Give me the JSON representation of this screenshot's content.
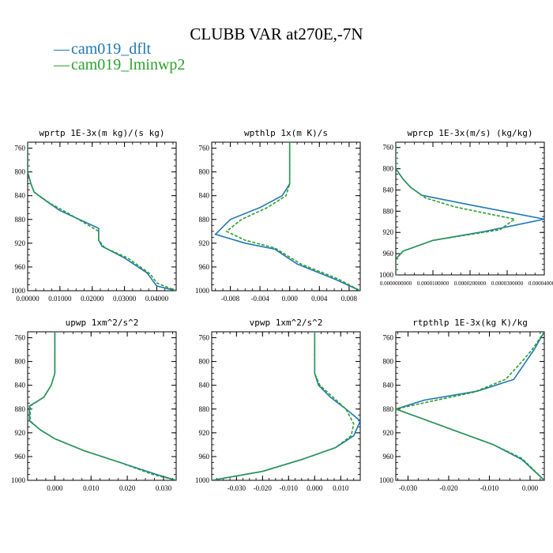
{
  "figure": {
    "title": "CLUBB VAR at270E,-7N",
    "legend": [
      {
        "label": "cam019_dflt",
        "color": "#1f77b4",
        "dash": false
      },
      {
        "label": "cam019_lminwp2",
        "color": "#2ca02c",
        "dash": true
      }
    ]
  },
  "chart_data": [
    {
      "type": "line",
      "title": "wprtp  1E-3x(m kg)/(s kg)",
      "xlim": [
        0.0,
        0.046
      ],
      "ylim": [
        1000,
        750
      ],
      "xticks": [
        0.0,
        0.01,
        0.02,
        0.03,
        0.04
      ],
      "xtick_labels": [
        "0.00000",
        "0.01000",
        "0.02000",
        "0.03000",
        "0.04000"
      ],
      "yticks": [
        760,
        800,
        840,
        880,
        920,
        960,
        1000
      ],
      "series": [
        {
          "name": "cam019_dflt",
          "color": "#1f77b4",
          "dash": false,
          "x": [
            0.0,
            0.0,
            0.001,
            0.002,
            0.006,
            0.01,
            0.022,
            0.022,
            0.023,
            0.03,
            0.037,
            0.039,
            0.04,
            0.046
          ],
          "y": [
            750,
            800,
            820,
            834,
            850,
            865,
            895,
            915,
            925,
            945,
            970,
            985,
            992,
            1000
          ]
        },
        {
          "name": "cam019_lminwp2",
          "color": "#2ca02c",
          "dash": true,
          "x": [
            0.0,
            0.0,
            0.001,
            0.002,
            0.007,
            0.012,
            0.022,
            0.022,
            0.024,
            0.031,
            0.038,
            0.04,
            0.046
          ],
          "y": [
            750,
            800,
            820,
            834,
            853,
            868,
            900,
            915,
            928,
            945,
            972,
            987,
            1000
          ]
        }
      ]
    },
    {
      "type": "line",
      "title": "wpthlp  1x(m K)/s",
      "xlim": [
        -0.0105,
        0.0095
      ],
      "ylim": [
        1000,
        750
      ],
      "xticks": [
        -0.008,
        -0.004,
        0.0,
        0.004,
        0.008
      ],
      "xtick_labels": [
        "-0.008",
        "-0.004",
        "0.000",
        "0.004",
        "0.008"
      ],
      "yticks": [
        760,
        800,
        840,
        880,
        920,
        960,
        1000
      ],
      "series": [
        {
          "name": "cam019_dflt",
          "color": "#1f77b4",
          "dash": false,
          "x": [
            0.0,
            0.0,
            -0.001,
            -0.004,
            -0.008,
            -0.01,
            -0.006,
            -0.002,
            0.001,
            0.006,
            0.0095
          ],
          "y": [
            750,
            820,
            840,
            860,
            880,
            905,
            920,
            930,
            955,
            980,
            1000
          ]
        },
        {
          "name": "cam019_lminwp2",
          "color": "#2ca02c",
          "dash": true,
          "x": [
            0.0,
            0.0,
            -0.0005,
            -0.003,
            -0.0065,
            -0.0085,
            -0.006,
            -0.002,
            0.0015,
            0.0065,
            0.0095
          ],
          "y": [
            750,
            820,
            840,
            860,
            880,
            900,
            915,
            928,
            955,
            980,
            1000
          ]
        }
      ]
    },
    {
      "type": "line",
      "title": "wprcp  1E-3x(m/s) (kg/kg)",
      "xlim": [
        0.0,
        4e-05
      ],
      "ylim": [
        1000,
        750
      ],
      "xticks": [
        0.0,
        1e-05,
        2e-05,
        3e-05,
        4e-05
      ],
      "xtick_labels": [
        "0.0000000000",
        "0.0000100000",
        "0.0000200000",
        "0.0000300000",
        "0.0000400000"
      ],
      "yticks": [
        760,
        800,
        840,
        880,
        920,
        960,
        1000
      ],
      "series": [
        {
          "name": "cam019_dflt",
          "color": "#1f77b4",
          "dash": false,
          "x": [
            0.0,
            0.0,
            2e-06,
            4e-06,
            7e-06,
            2e-05,
            4e-05,
            2.4e-05,
            1e-05,
            2e-06,
            0.0,
            0.0
          ],
          "y": [
            750,
            800,
            820,
            835,
            850,
            868,
            895,
            918,
            935,
            955,
            970,
            1000
          ]
        },
        {
          "name": "cam019_lminwp2",
          "color": "#2ca02c",
          "dash": true,
          "x": [
            0.0,
            0.0,
            2e-06,
            4e-06,
            8e-06,
            1.6e-05,
            3.2e-05,
            2.8e-05,
            1e-05,
            2e-06,
            0.0,
            0.0
          ],
          "y": [
            750,
            800,
            820,
            835,
            855,
            872,
            895,
            915,
            935,
            955,
            970,
            1000
          ]
        }
      ]
    },
    {
      "type": "line",
      "title": "upwp  1xm^2/s^2",
      "xlim": [
        -0.0075,
        0.0335
      ],
      "ylim": [
        1000,
        750
      ],
      "xticks": [
        0.0,
        0.01,
        0.02,
        0.03
      ],
      "xtick_labels": [
        "0.000",
        "0.010",
        "0.020",
        "0.030"
      ],
      "yticks": [
        760,
        800,
        840,
        880,
        920,
        960,
        1000
      ],
      "series": [
        {
          "name": "cam019_dflt",
          "color": "#1f77b4",
          "dash": false,
          "x": [
            0.0,
            0.0,
            -0.001,
            -0.003,
            -0.007,
            -0.007,
            -0.004,
            0.0,
            0.008,
            0.018,
            0.028,
            0.0335
          ],
          "y": [
            750,
            820,
            840,
            860,
            875,
            900,
            915,
            930,
            950,
            970,
            990,
            1000
          ]
        },
        {
          "name": "cam019_lminwp2",
          "color": "#2ca02c",
          "dash": true,
          "x": [
            0.0,
            0.0,
            -0.001,
            -0.003,
            -0.0068,
            -0.0068,
            -0.004,
            0.0,
            0.008,
            0.018,
            0.027,
            0.0335
          ],
          "y": [
            750,
            820,
            840,
            860,
            875,
            900,
            915,
            930,
            950,
            970,
            990,
            1000
          ]
        }
      ]
    },
    {
      "type": "line",
      "title": "vpwp  1xm^2/s^2",
      "xlim": [
        -0.0395,
        0.0175
      ],
      "ylim": [
        1000,
        750
      ],
      "xticks": [
        -0.03,
        -0.02,
        -0.01,
        0.0,
        0.01
      ],
      "xtick_labels": [
        "-0.030",
        "-0.020",
        "-0.010",
        "0.000",
        "0.010"
      ],
      "yticks": [
        760,
        800,
        840,
        880,
        920,
        960,
        1000
      ],
      "series": [
        {
          "name": "cam019_dflt",
          "color": "#1f77b4",
          "dash": false,
          "x": [
            0.0,
            0.0,
            0.0015,
            0.006,
            0.012,
            0.0175,
            0.015,
            0.008,
            -0.005,
            -0.02,
            -0.0395
          ],
          "y": [
            750,
            820,
            840,
            860,
            880,
            900,
            925,
            945,
            965,
            985,
            1000
          ]
        },
        {
          "name": "cam019_lminwp2",
          "color": "#2ca02c",
          "dash": true,
          "x": [
            0.0,
            0.0,
            0.002,
            0.007,
            0.012,
            0.015,
            0.014,
            0.008,
            -0.005,
            -0.02,
            -0.0395
          ],
          "y": [
            750,
            820,
            840,
            860,
            880,
            905,
            925,
            945,
            965,
            985,
            1000
          ]
        }
      ]
    },
    {
      "type": "line",
      "title": "rtpthlp  1E-3x(kg K)/kg",
      "xlim": [
        -0.033,
        0.0035
      ],
      "ylim": [
        1000,
        750
      ],
      "xticks": [
        -0.03,
        -0.02,
        -0.01,
        0.0
      ],
      "xtick_labels": [
        "-0.030",
        "-0.020",
        "-0.010",
        "0.000"
      ],
      "yticks": [
        760,
        800,
        840,
        880,
        920,
        960,
        1000
      ],
      "series": [
        {
          "name": "cam019_dflt",
          "color": "#1f77b4",
          "dash": false,
          "x": [
            0.0035,
            0.001,
            -0.001,
            -0.004,
            -0.013,
            -0.026,
            -0.033,
            -0.027,
            -0.019,
            -0.009,
            -0.002,
            0.0035
          ],
          "y": [
            750,
            780,
            800,
            830,
            850,
            865,
            880,
            895,
            915,
            940,
            965,
            1000
          ]
        },
        {
          "name": "cam019_lminwp2",
          "color": "#2ca02c",
          "dash": true,
          "x": [
            0.0035,
            0.0005,
            -0.002,
            -0.006,
            -0.014,
            -0.025,
            -0.033,
            -0.027,
            -0.019,
            -0.009,
            -0.002,
            0.0035
          ],
          "y": [
            750,
            780,
            800,
            830,
            852,
            868,
            880,
            895,
            915,
            940,
            963,
            1000
          ]
        }
      ]
    }
  ]
}
